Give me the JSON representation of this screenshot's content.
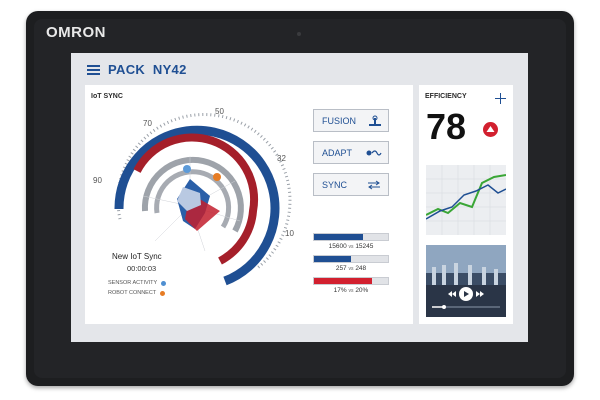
{
  "device": {
    "brand": "OMRON"
  },
  "header": {
    "title": "PACK  NY42"
  },
  "iot": {
    "label": "IoT SYNC",
    "gauge_ticks": [
      "90",
      "70",
      "50",
      "32",
      "10"
    ],
    "sync_title": "New IoT Sync",
    "sync_time": "00:00:03",
    "legend": [
      {
        "label": "SENSOR ACTIVITY",
        "color": "#4f8fd1"
      },
      {
        "label": "ROBOT CONNECT",
        "color": "#e67c24"
      }
    ]
  },
  "buttons": [
    {
      "label": "FUSION",
      "icon": "robot-arm-icon"
    },
    {
      "label": "ADAPT",
      "icon": "adapt-wave-icon"
    },
    {
      "label": "SYNC",
      "icon": "sync-arrows-icon"
    }
  ],
  "bars": [
    {
      "value": "15600",
      "vs": "vs",
      "target": "15245",
      "fill": 0.66,
      "color": "#1f4f93"
    },
    {
      "value": "257",
      "vs": "vs",
      "target": "248",
      "fill": 0.5,
      "color": "#1f4f93"
    },
    {
      "value": "17%",
      "vs": "vs",
      "target": "20%",
      "fill": 0.78,
      "color": "#d2202f"
    }
  ],
  "efficiency": {
    "label": "EFFICIENCY",
    "value": "78",
    "trend": "up-arrow-icon"
  },
  "colors": {
    "blue": "#1f4f93",
    "red": "#c21f2e",
    "green": "#3aa636",
    "gray": "#9ea3aa"
  }
}
